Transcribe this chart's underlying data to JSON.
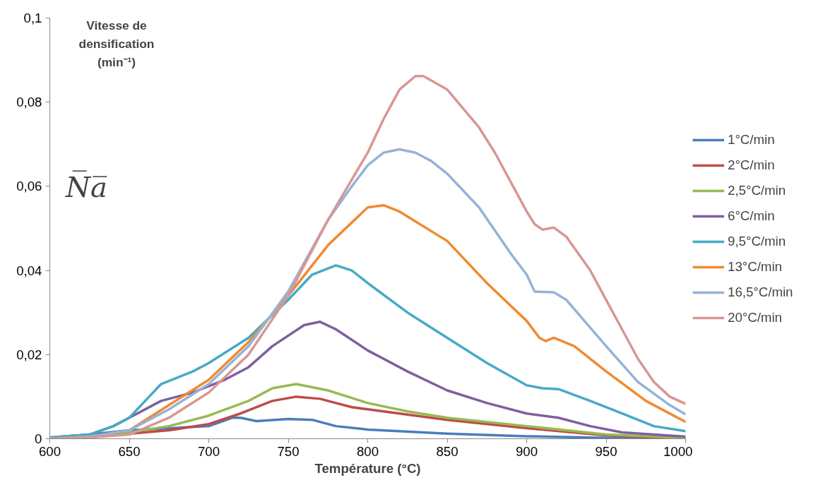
{
  "chart_data": {
    "type": "line",
    "xlabel": "Température (°C)",
    "ylabel": "Vitesse de densification (min⁻¹)",
    "annotations": [
      "N̅a̅"
    ],
    "xlim": [
      600,
      1000
    ],
    "xticks": [
      600,
      650,
      700,
      750,
      800,
      850,
      900,
      950,
      1000
    ],
    "ylim": [
      0,
      0.1
    ],
    "yticks": [
      0,
      {
        "value": 0.02,
        "label": "0,02"
      },
      {
        "value": 0.04,
        "label": "0,04"
      },
      {
        "value": 0.06,
        "label": "0,06"
      },
      {
        "value": 0.08,
        "label": "0,08"
      },
      {
        "value": 0.1,
        "label": "0,1"
      }
    ],
    "grid": false,
    "legend": "right",
    "line_style": "solid",
    "marker": "none",
    "series": [
      {
        "name": "1°C/min",
        "color": "#4a7ebb",
        "x": [
          600,
          625,
          650,
          700,
          715,
          720,
          730,
          750,
          765,
          780,
          800,
          850,
          900,
          950,
          1000
        ],
        "values": [
          0.0002,
          0.001,
          0.002,
          0.003,
          0.005,
          0.005,
          0.0042,
          0.0047,
          0.0045,
          0.003,
          0.0022,
          0.0012,
          0.0006,
          0.0002,
          0.0
        ]
      },
      {
        "name": "2°C/min",
        "color": "#be4b48",
        "x": [
          600,
          625,
          650,
          675,
          700,
          720,
          740,
          755,
          770,
          780,
          790,
          800,
          850,
          900,
          950,
          1000
        ],
        "values": [
          0.0,
          0.0005,
          0.0012,
          0.002,
          0.0035,
          0.006,
          0.009,
          0.01,
          0.0095,
          0.0085,
          0.0075,
          0.007,
          0.0045,
          0.0025,
          0.0008,
          0.0001
        ]
      },
      {
        "name": "2,5°C/min",
        "color": "#98b954",
        "x": [
          600,
          625,
          650,
          675,
          700,
          725,
          740,
          755,
          775,
          800,
          825,
          850,
          900,
          950,
          1000
        ],
        "values": [
          0.0,
          0.0005,
          0.0015,
          0.003,
          0.0055,
          0.009,
          0.012,
          0.013,
          0.0115,
          0.0085,
          0.0065,
          0.005,
          0.003,
          0.001,
          0.0002
        ]
      },
      {
        "name": "6°C/min",
        "color": "#7d60a0",
        "x": [
          600,
          625,
          640,
          650,
          670,
          690,
          710,
          725,
          740,
          760,
          770,
          780,
          800,
          825,
          850,
          875,
          900,
          920,
          940,
          960,
          1000
        ],
        "values": [
          0.0003,
          0.001,
          0.003,
          0.005,
          0.009,
          0.011,
          0.014,
          0.017,
          0.022,
          0.027,
          0.0278,
          0.026,
          0.021,
          0.016,
          0.0115,
          0.0085,
          0.006,
          0.005,
          0.003,
          0.0015,
          0.0005
        ]
      },
      {
        "name": "9,5°C/min",
        "color": "#46aac5",
        "x": [
          600,
          625,
          640,
          650,
          660,
          670,
          690,
          700,
          725,
          750,
          765,
          780,
          790,
          800,
          825,
          850,
          875,
          900,
          910,
          920,
          940,
          960,
          980,
          1000
        ],
        "values": [
          0.0003,
          0.001,
          0.003,
          0.005,
          0.009,
          0.013,
          0.016,
          0.018,
          0.024,
          0.033,
          0.039,
          0.0412,
          0.04,
          0.037,
          0.03,
          0.024,
          0.018,
          0.0127,
          0.012,
          0.0118,
          0.009,
          0.006,
          0.003,
          0.0018
        ]
      },
      {
        "name": "13°C/min",
        "color": "#f08a30",
        "x": [
          600,
          625,
          650,
          675,
          700,
          725,
          750,
          775,
          800,
          810,
          820,
          850,
          875,
          900,
          908,
          912,
          917,
          930,
          950,
          975,
          1000
        ],
        "values": [
          0.0,
          0.0005,
          0.002,
          0.008,
          0.014,
          0.023,
          0.034,
          0.046,
          0.055,
          0.0555,
          0.054,
          0.047,
          0.037,
          0.028,
          0.024,
          0.0232,
          0.024,
          0.022,
          0.016,
          0.009,
          0.004
        ]
      },
      {
        "name": "16,5°C/min",
        "color": "#95b3d7",
        "x": [
          600,
          625,
          650,
          675,
          700,
          725,
          750,
          775,
          790,
          800,
          810,
          820,
          830,
          840,
          850,
          870,
          890,
          900,
          905,
          917,
          925,
          950,
          970,
          990,
          1000
        ],
        "values": [
          0.0,
          0.0005,
          0.002,
          0.007,
          0.013,
          0.022,
          0.035,
          0.052,
          0.06,
          0.065,
          0.068,
          0.0688,
          0.068,
          0.066,
          0.063,
          0.055,
          0.044,
          0.039,
          0.035,
          0.0348,
          0.033,
          0.022,
          0.0135,
          0.008,
          0.0058
        ]
      },
      {
        "name": "20°C/min",
        "color": "#d99694",
        "x": [
          600,
          625,
          650,
          675,
          700,
          725,
          750,
          775,
          800,
          810,
          820,
          830,
          835,
          850,
          870,
          880,
          890,
          900,
          905,
          910,
          917,
          925,
          940,
          950,
          960,
          970,
          980,
          990,
          1000
        ],
        "values": [
          0.0,
          0.0003,
          0.001,
          0.005,
          0.011,
          0.02,
          0.034,
          0.052,
          0.068,
          0.076,
          0.083,
          0.0862,
          0.0862,
          0.083,
          0.074,
          0.068,
          0.061,
          0.054,
          0.051,
          0.0497,
          0.0502,
          0.048,
          0.04,
          0.033,
          0.026,
          0.019,
          0.0135,
          0.01,
          0.0083
        ]
      }
    ]
  }
}
